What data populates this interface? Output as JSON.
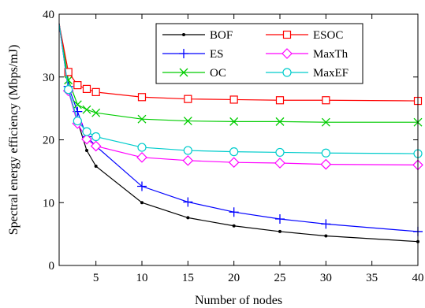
{
  "chart_data": {
    "type": "line",
    "title": "",
    "xlabel": "Number of nodes",
    "ylabel": "Spectral energy efficiency (Mbps/mJ)",
    "xlim": [
      1,
      40
    ],
    "ylim": [
      0,
      40
    ],
    "xticks": [
      5,
      10,
      15,
      20,
      25,
      30,
      35,
      40
    ],
    "yticks": [
      0,
      10,
      20,
      30,
      40
    ],
    "grid": false,
    "legend_position": "top-right",
    "x": [
      1,
      2,
      3,
      4,
      5,
      10,
      15,
      20,
      25,
      30,
      40
    ],
    "series": [
      {
        "name": "BOF",
        "color": "#000000",
        "marker": "dot",
        "values": [
          38.5,
          28.0,
          23.0,
          18.3,
          15.8,
          10.0,
          7.6,
          6.3,
          5.4,
          4.7,
          3.8
        ]
      },
      {
        "name": "ES",
        "color": "#0000ff",
        "marker": "plus",
        "values": [
          38.5,
          28.5,
          24.5,
          20.5,
          19.0,
          12.6,
          10.1,
          8.5,
          7.4,
          6.6,
          5.4
        ]
      },
      {
        "name": "OC",
        "color": "#00cc00",
        "marker": "x",
        "values": [
          38.5,
          29.5,
          25.6,
          24.8,
          24.3,
          23.3,
          23.0,
          22.9,
          22.9,
          22.8,
          22.8
        ]
      },
      {
        "name": "ESOC",
        "color": "#ff0000",
        "marker": "square",
        "values": [
          38.5,
          30.8,
          28.7,
          28.1,
          27.6,
          26.8,
          26.5,
          26.4,
          26.3,
          26.3,
          26.2
        ]
      },
      {
        "name": "MaxTh",
        "color": "#ff00ff",
        "marker": "diamond",
        "values": [
          38.5,
          27.8,
          22.6,
          20.1,
          19.0,
          17.2,
          16.7,
          16.4,
          16.3,
          16.1,
          16.0
        ]
      },
      {
        "name": "MaxEF",
        "color": "#00cccc",
        "marker": "circle",
        "values": [
          38.5,
          28.0,
          23.0,
          21.3,
          20.5,
          18.8,
          18.3,
          18.1,
          18.0,
          17.9,
          17.8
        ]
      }
    ]
  }
}
